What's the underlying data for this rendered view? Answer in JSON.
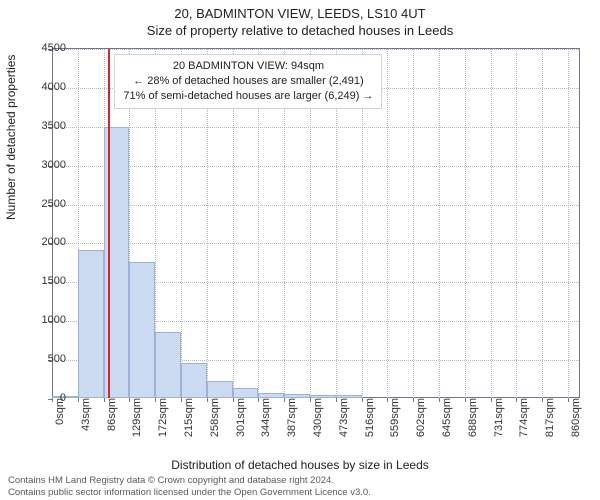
{
  "header": {
    "address": "20, BADMINTON VIEW, LEEDS, LS10 4UT",
    "subtitle": "Size of property relative to detached houses in Leeds"
  },
  "chart": {
    "type": "histogram",
    "ylabel": "Number of detached properties",
    "xlabel": "Distribution of detached houses by size in Leeds",
    "ylim": [
      0,
      4500
    ],
    "ytick_step": 500,
    "x_tick_labels": [
      "0sqm",
      "43sqm",
      "86sqm",
      "129sqm",
      "172sqm",
      "215sqm",
      "258sqm",
      "301sqm",
      "344sqm",
      "387sqm",
      "430sqm",
      "473sqm",
      "516sqm",
      "559sqm",
      "602sqm",
      "645sqm",
      "688sqm",
      "731sqm",
      "774sqm",
      "817sqm",
      "860sqm"
    ],
    "x_tick_values": [
      0,
      43,
      86,
      129,
      172,
      215,
      258,
      301,
      344,
      387,
      430,
      473,
      516,
      559,
      602,
      645,
      688,
      731,
      774,
      817,
      860
    ],
    "x_range": [
      0,
      880
    ],
    "bin_width": 43,
    "bar_color": "#cddbf2",
    "bar_border_color": "#9cb2d6",
    "grid_color": "#b1b9c4",
    "axis_color": "#6c7a89",
    "background_color": "#ffffff",
    "marker_x": 94,
    "marker_color": "#d62728",
    "bars": [
      {
        "x0": 0,
        "count": 10
      },
      {
        "x0": 43,
        "count": 1900
      },
      {
        "x0": 86,
        "count": 3480
      },
      {
        "x0": 129,
        "count": 1750
      },
      {
        "x0": 172,
        "count": 850
      },
      {
        "x0": 215,
        "count": 450
      },
      {
        "x0": 258,
        "count": 220
      },
      {
        "x0": 301,
        "count": 130
      },
      {
        "x0": 344,
        "count": 70
      },
      {
        "x0": 387,
        "count": 55
      },
      {
        "x0": 430,
        "count": 40
      },
      {
        "x0": 473,
        "count": 35
      }
    ],
    "label_fontsize": 12,
    "tick_fontsize": 11
  },
  "annotation": {
    "line1": "20 BADMINTON VIEW: 94sqm",
    "line2": "← 28% of detached houses are smaller (2,491)",
    "line3": "71% of semi-detached houses are larger (6,249) →",
    "border_color": "#d0d3d8",
    "background_color": "#ffffff",
    "fontsize": 11
  },
  "footer": {
    "line1": "Contains HM Land Registry data © Crown copyright and database right 2024.",
    "line2": "Contains public sector information licensed under the Open Government Licence v3.0."
  }
}
